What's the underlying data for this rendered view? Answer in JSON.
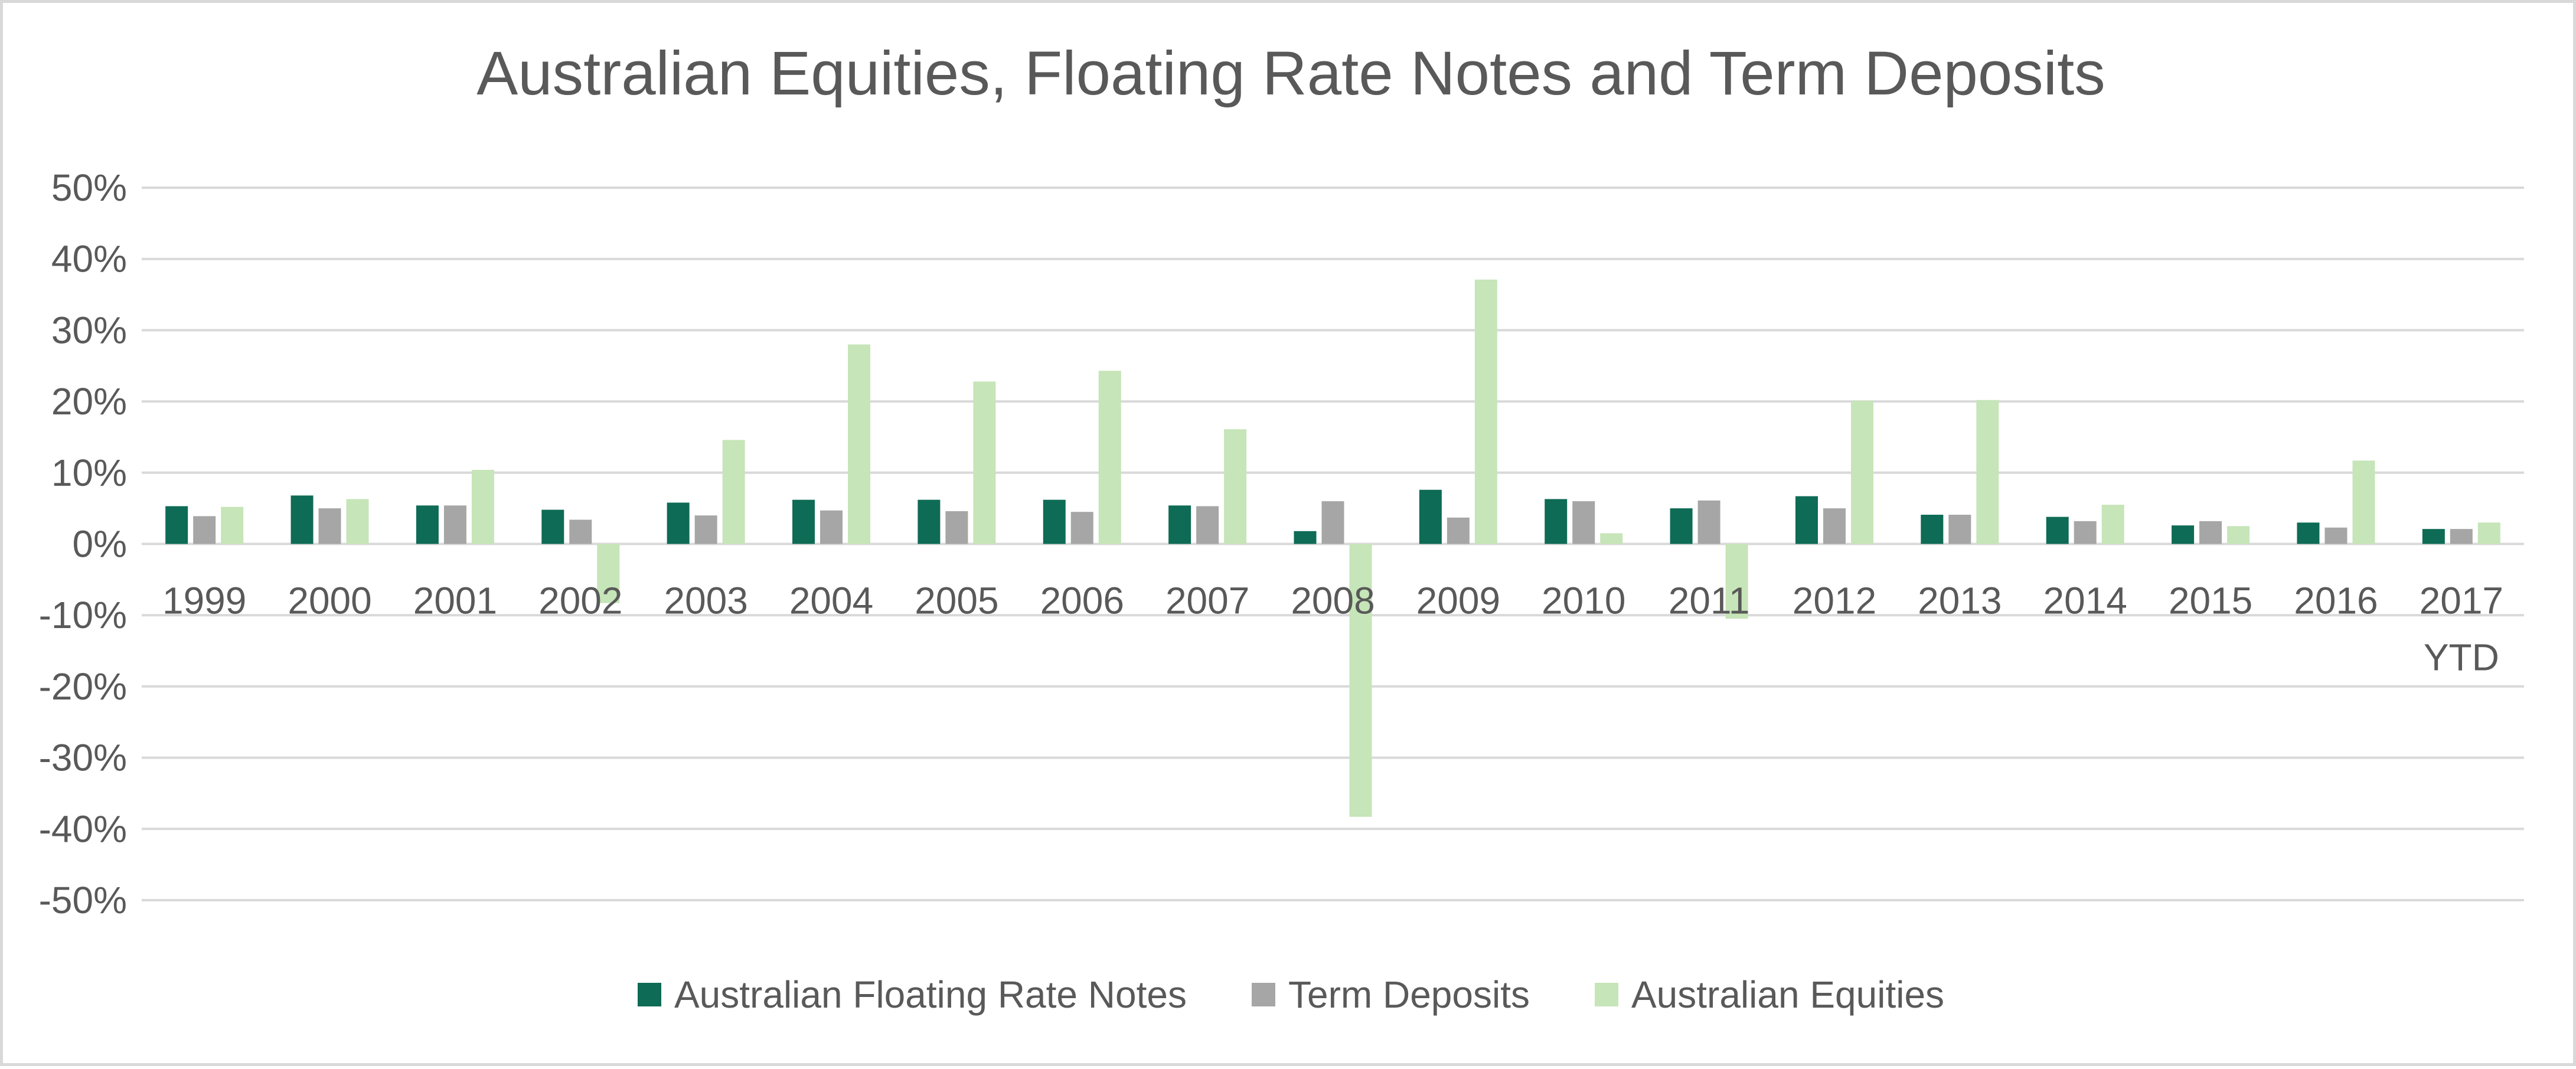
{
  "chart_data": {
    "type": "bar",
    "title": "Australian Equities, Floating Rate Notes and Term Deposits",
    "categories": [
      "1999",
      "2000",
      "2001",
      "2002",
      "2003",
      "2004",
      "2005",
      "2006",
      "2007",
      "2008",
      "2009",
      "2010",
      "2011",
      "2012",
      "2013",
      "2014",
      "2015",
      "2016",
      "2017\nYTD"
    ],
    "series": [
      {
        "name": "Australian Floating Rate Notes",
        "color": "#0e6b55",
        "values": [
          5.3,
          6.8,
          5.4,
          4.8,
          5.8,
          6.2,
          6.2,
          6.2,
          5.4,
          1.8,
          7.6,
          6.3,
          5.0,
          6.7,
          4.1,
          3.8,
          2.6,
          3.0,
          2.1
        ]
      },
      {
        "name": "Term Deposits",
        "color": "#a6a6a6",
        "values": [
          3.9,
          5.0,
          5.4,
          3.4,
          4.0,
          4.7,
          4.6,
          4.5,
          5.3,
          6.0,
          3.7,
          6.0,
          6.1,
          5.0,
          4.1,
          3.2,
          3.2,
          2.3,
          2.1
        ]
      },
      {
        "name": "Australian Equities",
        "color": "#c6e5b8",
        "values": [
          5.2,
          6.3,
          10.4,
          -8.3,
          14.6,
          28.0,
          22.8,
          24.3,
          16.1,
          -38.3,
          37.1,
          1.5,
          -10.5,
          20.1,
          20.2,
          5.5,
          2.5,
          11.7,
          3.0
        ]
      }
    ],
    "ylim": [
      -50,
      50
    ],
    "yticks": [
      "50%",
      "40%",
      "30%",
      "20%",
      "10%",
      "0%",
      "-10%",
      "-20%",
      "-30%",
      "-40%",
      "-50%"
    ],
    "ytick_values": [
      50,
      40,
      30,
      20,
      10,
      0,
      -10,
      -20,
      -30,
      -40,
      -50
    ],
    "grid": true,
    "legend_position": "bottom"
  }
}
